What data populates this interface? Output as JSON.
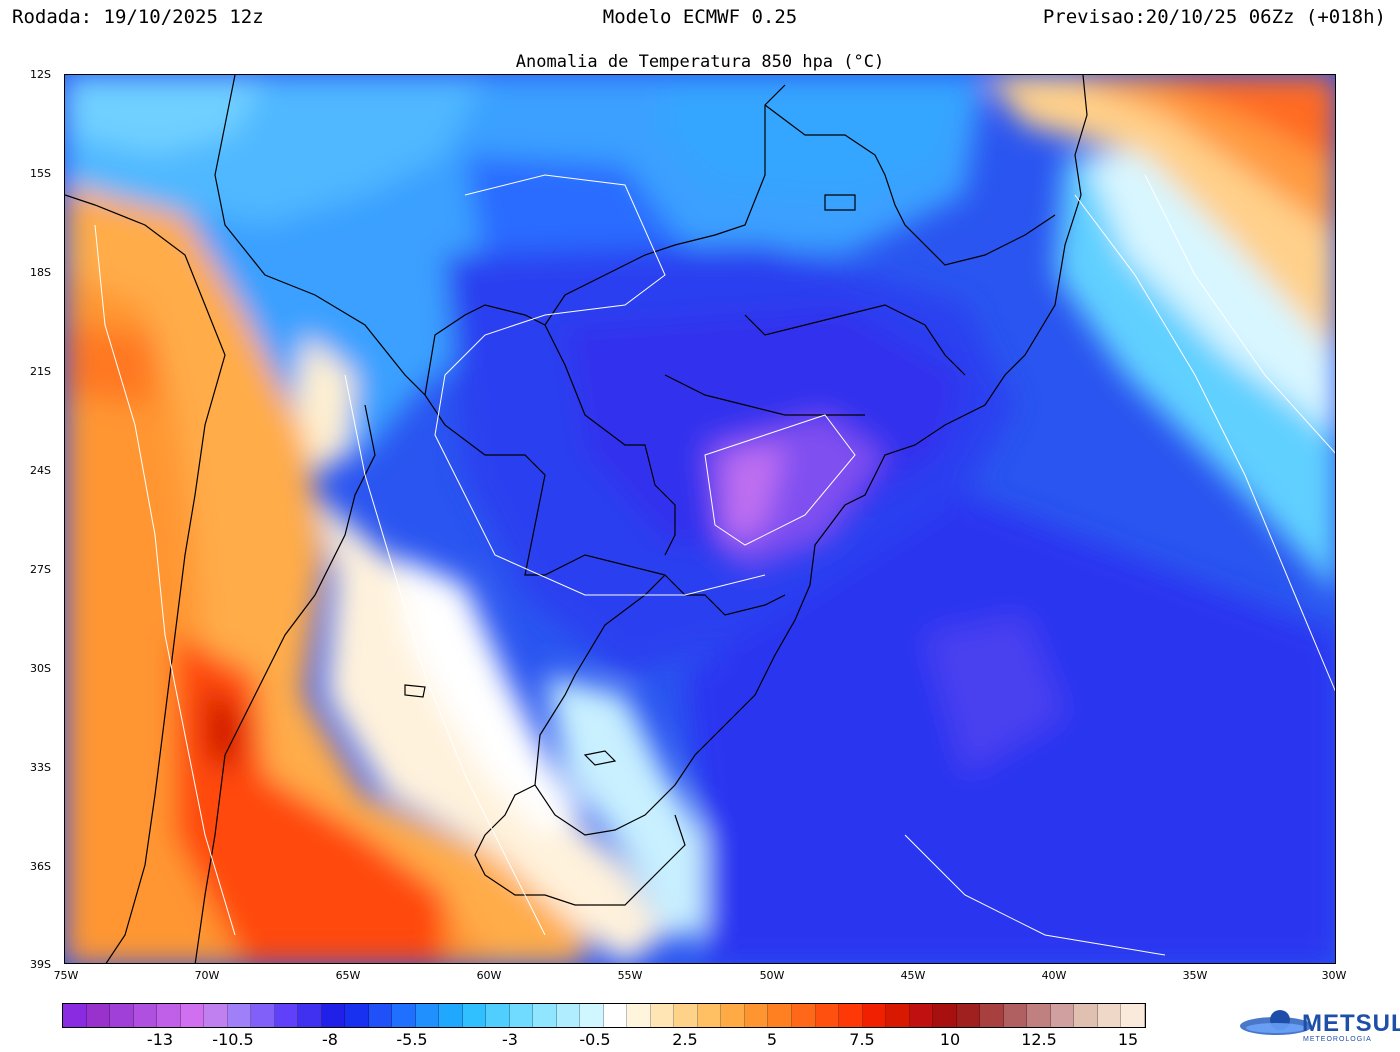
{
  "header": {
    "left": "Rodada: 19/10/2025 12z",
    "center": "Modelo ECMWF 0.25",
    "right": "Previsao:20/10/25 06Zz (+018h)"
  },
  "title": "Anomalia de Temperatura 850 hpa (°C)",
  "lat_labels": [
    "12S",
    "15S",
    "18S",
    "21S",
    "24S",
    "27S",
    "30S",
    "33S",
    "36S",
    "39S"
  ],
  "lon_labels": [
    "75W",
    "70W",
    "65W",
    "60W",
    "55W",
    "50W",
    "45W",
    "40W",
    "35W",
    "30W"
  ],
  "colorbar": {
    "labels": [
      "-13",
      "-10.5",
      "-8",
      "-5.5",
      "-3",
      "-0.5",
      "2.5",
      "5",
      "7.5",
      "10",
      "12.5",
      "15"
    ],
    "colors": [
      "#8a2be2",
      "#9932cc",
      "#a040d8",
      "#b050e0",
      "#c060e8",
      "#d070f0",
      "#c080f0",
      "#a080f8",
      "#8060f8",
      "#6040f8",
      "#4030f0",
      "#2020e8",
      "#1830f0",
      "#2050f8",
      "#2070ff",
      "#2090ff",
      "#20a8ff",
      "#30bfff",
      "#50cfff",
      "#70dbff",
      "#90e5ff",
      "#b0eeff",
      "#d0f6ff",
      "#ffffff",
      "#fff5dc",
      "#ffe5b4",
      "#ffd28a",
      "#ffc064",
      "#ffaa44",
      "#ff9530",
      "#ff8020",
      "#ff6818",
      "#ff5010",
      "#ff3808",
      "#f02000",
      "#d81800",
      "#c01010",
      "#a81010",
      "#a02020",
      "#a84040",
      "#b06060",
      "#c08080",
      "#d0a0a0",
      "#e0c0b0",
      "#f0d8c8",
      "#faeadb"
    ]
  },
  "logo": {
    "name": "METSUL",
    "sub": "METEOROLOGIA"
  }
}
